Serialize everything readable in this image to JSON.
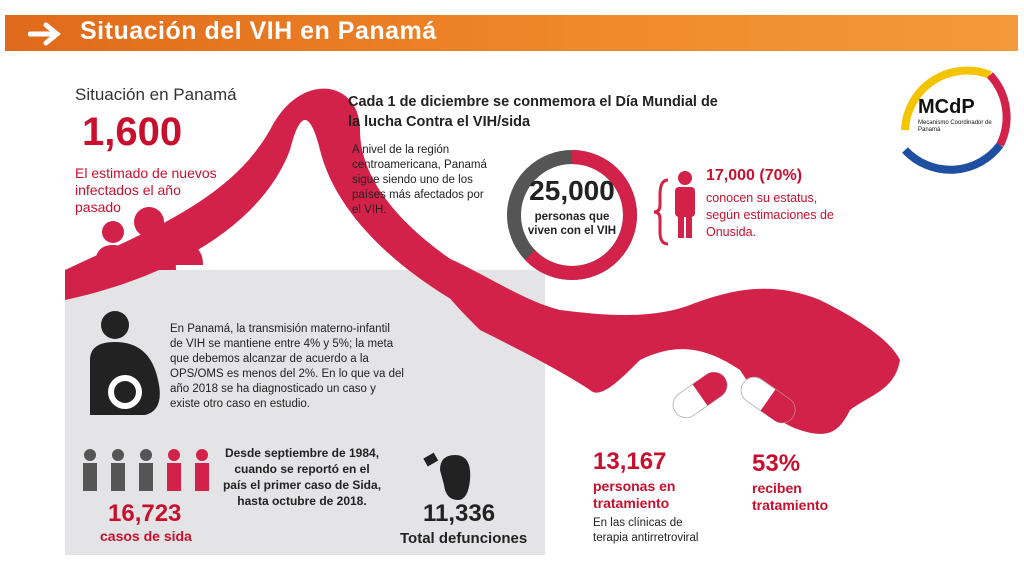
{
  "header": {
    "title": "Situación del VIH en Panamá"
  },
  "logo": {
    "acronym": "MCdP",
    "name": "Mecanismo Coordinador de Panamá"
  },
  "situation": {
    "heading": "Situación en Panamá",
    "value": "1,600",
    "caption": "El estimado de nuevos infectados el año pasado"
  },
  "world_day": {
    "text": "Cada 1 de diciembre se conmemora el Día Mundial de la lucha Contra el VIH/sida"
  },
  "region": {
    "text": "A nivel de la región centroamericana, Panamá sigue siendo uno de los países más afectados por el VIH."
  },
  "living": {
    "value": "25,000",
    "caption": "personas que viven con el VIH"
  },
  "status": {
    "value": "17,000 (70%)",
    "caption": "conocen su estatus, según estimaciones de Onusida."
  },
  "maternal": {
    "text": "En Panamá, la transmisión materno-infantil de VIH se mantiene entre 4% y 5%; la meta que debemos alcanzar de acuerdo a la OPS/OMS es menos del 2%. En lo que va del año 2018 se ha diagnosticado un caso y existe otro caso en estudio."
  },
  "aids_cases": {
    "value": "16,723",
    "caption": "casos de sida"
  },
  "since": {
    "text": "Desde septiembre de 1984, cuando se reportó en el país el primer caso de Sida, hasta octubre de 2018."
  },
  "deaths": {
    "value": "11,336",
    "caption": "Total defunciones"
  },
  "treatment": {
    "value": "13,167",
    "caption": "personas en tratamiento",
    "note": "En las clínicas de terapia antirretroviral"
  },
  "treated_share": {
    "value": "53%",
    "caption": "reciben tratamiento"
  }
}
